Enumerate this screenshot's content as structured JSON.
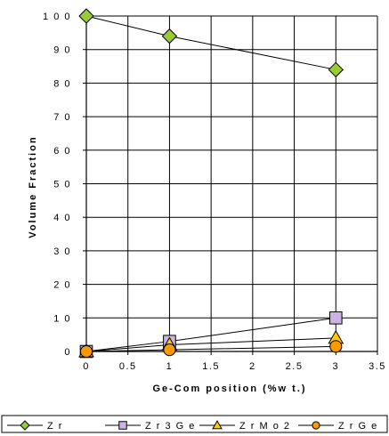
{
  "chart_data": {
    "type": "line",
    "xlabel": "Ge-Com position (%w t.)",
    "ylabel": "Volume Fraction",
    "xlim": [
      0,
      3.5
    ],
    "ylim": [
      0,
      100
    ],
    "x_ticks": [
      "0",
      "0.5",
      "1",
      "1.5",
      "2",
      "2.5",
      "3",
      "3.5"
    ],
    "y_ticks": [
      "0",
      "1 0",
      "2 0",
      "3 0",
      "4 0",
      "5 0",
      "6 0",
      "7 0",
      "8 0",
      "9 0",
      "1 0 0"
    ],
    "grid": true,
    "legend_position": "bottom",
    "series": [
      {
        "name": "Z r",
        "marker": "diamond",
        "color": "#99cc33",
        "points": [
          {
            "x": 0,
            "y": 100
          },
          {
            "x": 1,
            "y": 94
          },
          {
            "x": 3,
            "y": 84
          }
        ]
      },
      {
        "name": "Z r 3 G e",
        "marker": "square",
        "color": "#ccb3e6",
        "points": [
          {
            "x": 0,
            "y": 0
          },
          {
            "x": 1,
            "y": 3
          },
          {
            "x": 3,
            "y": 10
          }
        ]
      },
      {
        "name": "Z r M o 2",
        "marker": "triangle",
        "color": "#ffcc00",
        "points": [
          {
            "x": 0,
            "y": 0
          },
          {
            "x": 1,
            "y": 2
          },
          {
            "x": 3,
            "y": 4
          }
        ]
      },
      {
        "name": "Z r G e",
        "marker": "circle",
        "color": "#ff9900",
        "points": [
          {
            "x": 0,
            "y": 0
          },
          {
            "x": 1,
            "y": 0.5
          },
          {
            "x": 3,
            "y": 1.5
          }
        ]
      }
    ]
  }
}
